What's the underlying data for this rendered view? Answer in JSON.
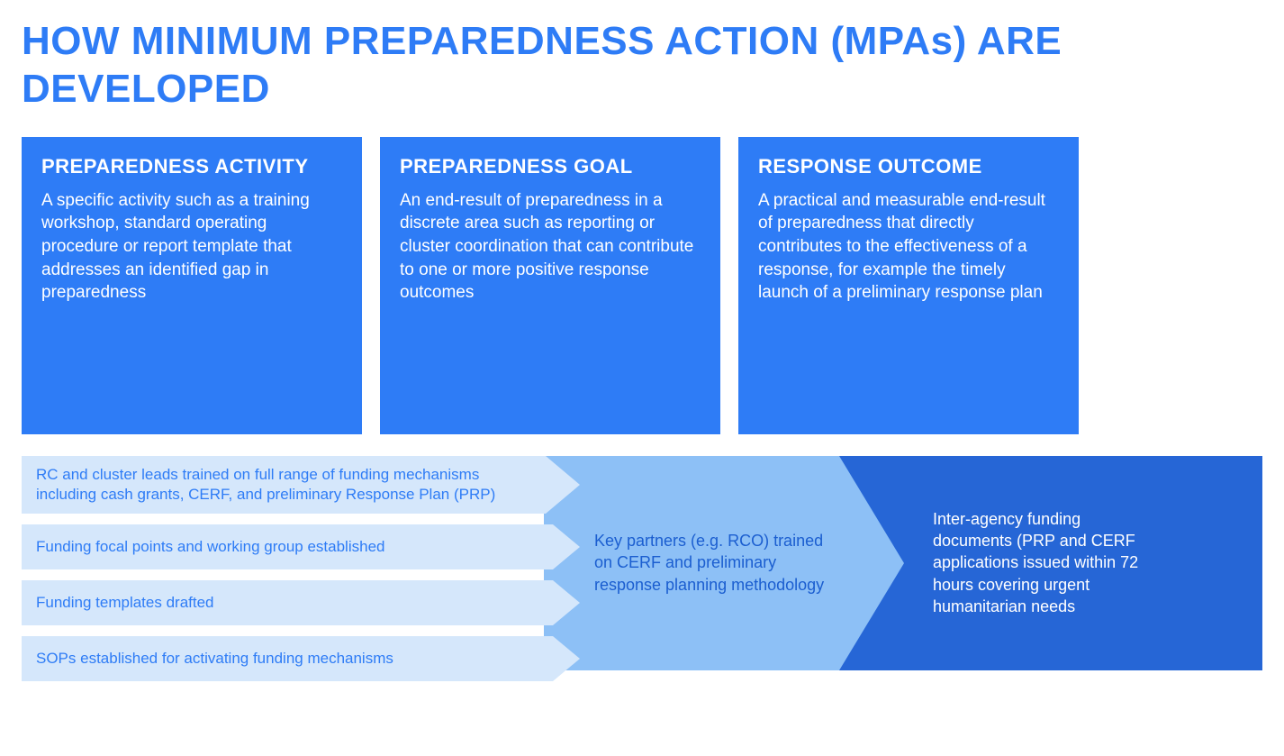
{
  "title": "HOW MINIMUM PREPAREDNESS ACTION (MPAs) ARE DEVELOPED",
  "colors": {
    "primary_blue": "#2e7cf6",
    "card_bg": "#2e7cf6",
    "card_text": "#ffffff",
    "activity_bg": "#d5e7fb",
    "activity_text": "#2e7cf6",
    "goal_bg": "#8dc0f6",
    "goal_text": "#1b5ed0",
    "outcome_bg": "#2666d6",
    "outcome_text": "#ffffff",
    "page_bg": "#ffffff"
  },
  "typography": {
    "title_fontsize": 44,
    "card_title_fontsize": 22,
    "card_body_fontsize": 19,
    "flow_fontsize": 18
  },
  "cards": [
    {
      "title": "PREPAREDNESS ACTIVITY",
      "body": "A specific activity such as a training workshop, standard operating procedure or report template that addresses an identified gap in preparedness"
    },
    {
      "title": "PREPAREDNESS GOAL",
      "body": "An end-result of preparedness in a discrete area such as reporting or cluster coordination that can contribute to one or more positive response outcomes"
    },
    {
      "title": "RESPONSE OUTCOME",
      "body": "A practical and measurable end-result of preparedness that directly contributes to the effectiveness of a response, for example the timely launch of a preliminary response plan"
    }
  ],
  "flow": {
    "activities": [
      "RC and cluster leads trained on full range of funding mechanisms including cash grants, CERF, and preliminary Response Plan (PRP)",
      "Funding focal points and working group established",
      "Funding templates drafted",
      "SOPs established for activating funding mechanisms"
    ],
    "goal": "Key partners (e.g. RCO) trained on CERF and preliminary response planning methodology",
    "outcome": "Inter-agency funding documents (PRP and CERF applications issued within 72 hours covering urgent humanitarian needs"
  }
}
